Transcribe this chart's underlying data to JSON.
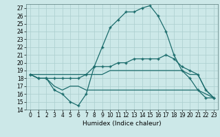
{
  "xlabel": "Humidex (Indice chaleur)",
  "xlim": [
    -0.5,
    23.5
  ],
  "ylim": [
    14,
    27.5
  ],
  "yticks": [
    14,
    15,
    16,
    17,
    18,
    19,
    20,
    21,
    22,
    23,
    24,
    25,
    26,
    27
  ],
  "xticks": [
    0,
    1,
    2,
    3,
    4,
    5,
    6,
    7,
    8,
    9,
    10,
    11,
    12,
    13,
    14,
    15,
    16,
    17,
    18,
    19,
    20,
    21,
    22,
    23
  ],
  "bg_color": "#cce8e8",
  "grid_color": "#aacece",
  "line_color": "#1a6b6b",
  "lines": [
    {
      "x": [
        0,
        1,
        2,
        3,
        4,
        5,
        6,
        7,
        8,
        9,
        10,
        11,
        12,
        13,
        14,
        15,
        16,
        17,
        18,
        19,
        20,
        21,
        22,
        23
      ],
      "y": [
        18.5,
        18.0,
        18.0,
        16.5,
        16.0,
        15.0,
        14.5,
        16.0,
        19.5,
        22.0,
        24.5,
        25.5,
        26.5,
        26.5,
        27.0,
        27.3,
        26.0,
        24.0,
        21.0,
        19.0,
        18.0,
        16.5,
        15.5,
        15.5
      ],
      "marker": "+"
    },
    {
      "x": [
        0,
        1,
        2,
        3,
        4,
        5,
        6,
        7,
        8,
        9,
        10,
        11,
        12,
        13,
        14,
        15,
        16,
        17,
        18,
        19,
        20,
        21,
        22,
        23
      ],
      "y": [
        18.5,
        18.0,
        18.0,
        18.0,
        18.0,
        18.0,
        18.0,
        18.5,
        19.5,
        19.5,
        19.5,
        20.0,
        20.0,
        20.5,
        20.5,
        20.5,
        20.5,
        21.0,
        20.5,
        19.5,
        19.0,
        18.5,
        16.5,
        15.5
      ],
      "marker": "+"
    },
    {
      "x": [
        0,
        1,
        2,
        3,
        4,
        5,
        6,
        7,
        8,
        9,
        10,
        11,
        12,
        13,
        14,
        15,
        16,
        17,
        18,
        19,
        20,
        21,
        22,
        23
      ],
      "y": [
        18.5,
        18.0,
        18.0,
        17.0,
        16.5,
        17.0,
        17.0,
        16.5,
        16.5,
        16.5,
        16.5,
        16.5,
        16.5,
        16.5,
        16.5,
        16.5,
        16.5,
        16.5,
        16.5,
        16.5,
        16.5,
        16.5,
        16.0,
        15.5
      ],
      "marker": null
    },
    {
      "x": [
        0,
        1,
        2,
        3,
        4,
        5,
        6,
        7,
        8,
        9,
        10,
        11,
        12,
        13,
        14,
        15,
        16,
        17,
        18,
        19,
        20,
        21,
        22,
        23
      ],
      "y": [
        18.5,
        18.5,
        18.5,
        18.5,
        18.5,
        18.5,
        18.5,
        18.5,
        18.5,
        18.5,
        19.0,
        19.0,
        19.0,
        19.0,
        19.0,
        19.0,
        19.0,
        19.0,
        19.0,
        19.0,
        18.5,
        18.5,
        16.5,
        15.5
      ],
      "marker": null
    }
  ]
}
